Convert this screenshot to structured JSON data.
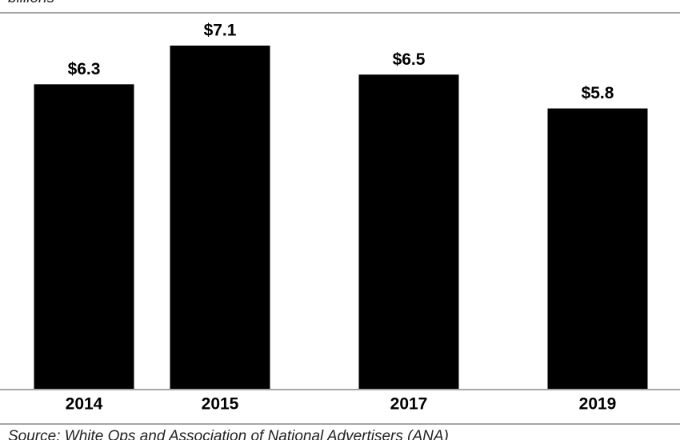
{
  "chart_data": {
    "type": "bar",
    "subtitle": "billions",
    "categories": [
      "2014",
      "2015",
      "2017",
      "2019"
    ],
    "values": [
      6.3,
      7.1,
      6.5,
      5.8
    ],
    "value_labels": [
      "$6.3",
      "$7.1",
      "$6.5",
      "$5.8"
    ],
    "color": "#000000",
    "source": "Source: White Ops and Association of National Advertisers (ANA)"
  }
}
